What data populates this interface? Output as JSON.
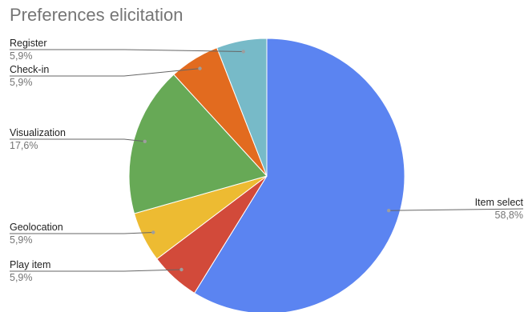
{
  "chart_data": {
    "type": "pie",
    "title": "Preferences elicitation",
    "start_angle_deg": 0,
    "direction": "clockwise",
    "slices": [
      {
        "name": "Item select",
        "label": "58,8%",
        "value": 58.8,
        "color": "#5b84f1"
      },
      {
        "name": "Play item",
        "label": "5,9%",
        "value": 5.9,
        "color": "#d24a3a"
      },
      {
        "name": "Geolocation",
        "label": "5,9%",
        "value": 5.9,
        "color": "#edbb32"
      },
      {
        "name": "Visualization",
        "label": "17,6%",
        "value": 17.6,
        "color": "#67a956"
      },
      {
        "name": "Check-in",
        "label": "5,9%",
        "value": 5.9,
        "color": "#e26b1f"
      },
      {
        "name": "Register",
        "label": "5,9%",
        "value": 5.9,
        "color": "#77bac8"
      }
    ],
    "legend": "none",
    "label_placement": "outside"
  }
}
